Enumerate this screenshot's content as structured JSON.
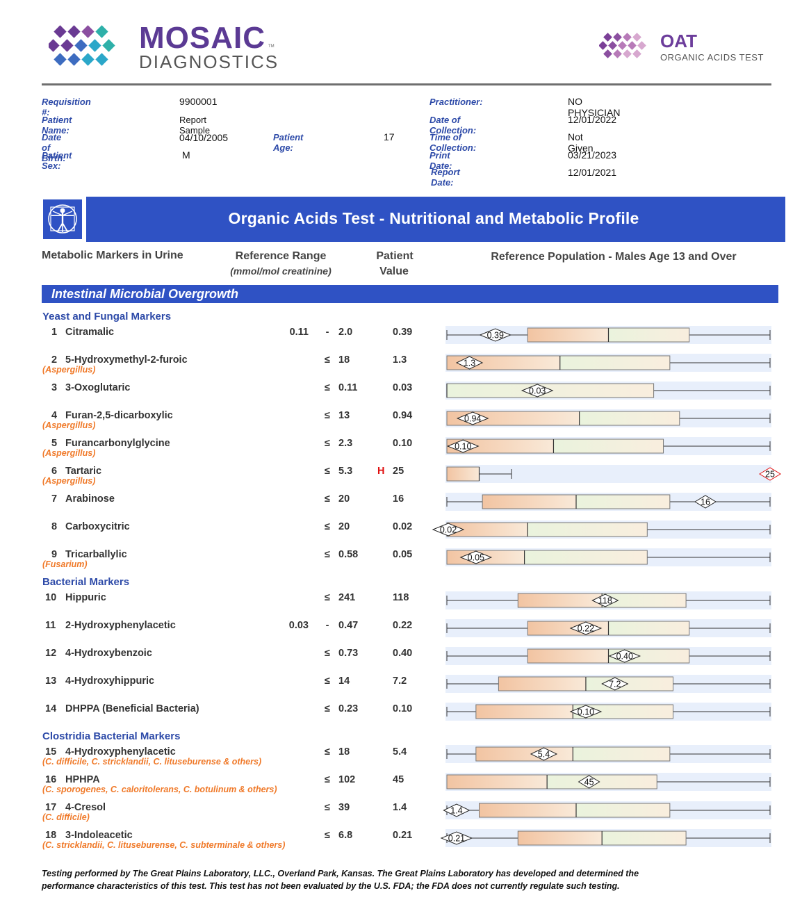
{
  "header": {
    "logo_line1": "MOSAIC",
    "logo_tm": "TM",
    "logo_line2": "DIAGNOSTICS",
    "oat_title": "OAT",
    "oat_subtitle": "ORGANIC ACIDS TEST"
  },
  "patient": {
    "left": [
      {
        "label": "Requisition #:",
        "value": "9900001"
      },
      {
        "label": "Patient Name:",
        "value": "Report Sample"
      },
      {
        "label": "Date of Birth:",
        "value": "04/10/2005"
      },
      {
        "label": "Patient Sex:",
        "value": "M"
      }
    ],
    "age_label": "Patient Age:",
    "age_value": "17",
    "right": [
      {
        "label": "Practitioner:",
        "value": "NO PHYSICIAN"
      },
      {
        "label": "Date of Collection:",
        "value": "12/01/2022"
      },
      {
        "label": "Time of Collection:",
        "value": "Not Given"
      },
      {
        "label": "Print Date:",
        "value": "03/21/2023"
      },
      {
        "label": "Report Date:",
        "value": "12/01/2021"
      }
    ]
  },
  "banner": {
    "icon": "vitruvian-man-icon",
    "title": "Organic Acids Test - Nutritional and Metabolic Profile"
  },
  "columns": {
    "markers": "Metabolic Markers in Urine",
    "range": "Reference Range",
    "range_units": "(mmol/mol creatinine)",
    "patient_line1": "Patient",
    "patient_line2": "Value",
    "population": "Reference Population - Males Age 13 and Over"
  },
  "section_title": "Intestinal Microbial Overgrowth",
  "groups": [
    {
      "title": "Yeast and Fungal Markers"
    },
    {
      "title": "Bacterial Markers"
    },
    {
      "title": "Clostridia Bacterial Markers"
    }
  ],
  "markers": [
    {
      "num": "1",
      "name": "Citramalic",
      "sub": "",
      "low": "0.11",
      "sep": "-",
      "high": "2.0",
      "flag": "",
      "value": "0.39"
    },
    {
      "num": "2",
      "name": "5-Hydroxymethyl-2-furoic",
      "sub": "(Aspergillus)",
      "low": "",
      "sep": "≤",
      "high": "18",
      "flag": "",
      "value": "1.3"
    },
    {
      "num": "3",
      "name": "3-Oxoglutaric",
      "sub": "",
      "low": "",
      "sep": "≤",
      "high": "0.11",
      "flag": "",
      "value": "0.03"
    },
    {
      "num": "4",
      "name": "Furan-2,5-dicarboxylic",
      "sub": "(Aspergillus)",
      "low": "",
      "sep": "≤",
      "high": "13",
      "flag": "",
      "value": "0.94"
    },
    {
      "num": "5",
      "name": "Furancarbonylglycine",
      "sub": "(Aspergillus)",
      "low": "",
      "sep": "≤",
      "high": "2.3",
      "flag": "",
      "value": "0.10"
    },
    {
      "num": "6",
      "name": "Tartaric",
      "sub": "(Aspergillus)",
      "low": "",
      "sep": "≤",
      "high": "5.3",
      "flag": "H",
      "value": "25"
    },
    {
      "num": "7",
      "name": "Arabinose",
      "sub": "",
      "low": "",
      "sep": "≤",
      "high": "20",
      "flag": "",
      "value": "16"
    },
    {
      "num": "8",
      "name": "Carboxycitric",
      "sub": "",
      "low": "",
      "sep": "≤",
      "high": "20",
      "flag": "",
      "value": "0.02"
    },
    {
      "num": "9",
      "name": "Tricarballylic",
      "sub": "(Fusarium)",
      "low": "",
      "sep": "≤",
      "high": "0.58",
      "flag": "",
      "value": "0.05"
    },
    {
      "num": "10",
      "name": "Hippuric",
      "sub": "",
      "low": "",
      "sep": "≤",
      "high": "241",
      "flag": "",
      "value": "118"
    },
    {
      "num": "11",
      "name": "2-Hydroxyphenylacetic",
      "sub": "",
      "low": "0.03",
      "sep": "-",
      "high": "0.47",
      "flag": "",
      "value": "0.22"
    },
    {
      "num": "12",
      "name": "4-Hydroxybenzoic",
      "sub": "",
      "low": "",
      "sep": "≤",
      "high": "0.73",
      "flag": "",
      "value": "0.40"
    },
    {
      "num": "13",
      "name": "4-Hydroxyhippuric",
      "sub": "",
      "low": "",
      "sep": "≤",
      "high": "14",
      "flag": "",
      "value": "7.2"
    },
    {
      "num": "14",
      "name": "DHPPA (Beneficial Bacteria)",
      "sub": "",
      "low": "",
      "sep": "≤",
      "high": "0.23",
      "flag": "",
      "value": "0.10"
    },
    {
      "num": "15",
      "name": "4-Hydroxyphenylacetic",
      "sub": "(C. difficile, C. stricklandii, C. lituseburense & others)",
      "low": "",
      "sep": "≤",
      "high": "18",
      "flag": "",
      "value": "5.4"
    },
    {
      "num": "16",
      "name": "HPHPA",
      "sub": "(C. sporogenes, C. caloritolerans, C. botulinum & others)",
      "low": "",
      "sep": "≤",
      "high": "102",
      "flag": "",
      "value": "45"
    },
    {
      "num": "17",
      "name": "4-Cresol",
      "sub": "(C. difficile)",
      "low": "",
      "sep": "≤",
      "high": "39",
      "flag": "",
      "value": "1.4"
    },
    {
      "num": "18",
      "name": "3-Indoleacetic",
      "sub": "(C. stricklandii, C. lituseburense, C. subterminale & others)",
      "low": "",
      "sep": "≤",
      "high": "6.8",
      "flag": "",
      "value": "0.21"
    }
  ],
  "chart_data": {
    "type": "box",
    "title": "Reference Population - Males Age 13 and Over",
    "note": "Box plots per marker on the 0-1 scale of the population panel; patient value shown as a diamond marker",
    "series": [
      {
        "marker": "Citramalic",
        "min": 0,
        "q1": 0.25,
        "median": 0.5,
        "q3": 0.75,
        "max": 1.0,
        "patient": 0.15,
        "patient_label": "0.39",
        "high": false
      },
      {
        "marker": "5-Hydroxymethyl-2-furoic",
        "min": 0,
        "q1": 0.0,
        "median": 0.35,
        "q3": 0.69,
        "max": 1.0,
        "patient": 0.07,
        "patient_label": "1.3",
        "high": false
      },
      {
        "marker": "3-Oxoglutaric",
        "min": 0,
        "q1": 0.0,
        "median": 0.0,
        "q3": 0.64,
        "max": 1.0,
        "patient": 0.28,
        "patient_label": "0.03",
        "high": false
      },
      {
        "marker": "Furan-2,5-dicarboxylic",
        "min": 0,
        "q1": 0.0,
        "median": 0.41,
        "q3": 0.72,
        "max": 1.0,
        "patient": 0.08,
        "patient_label": "0.94",
        "high": false
      },
      {
        "marker": "Furancarbonylglycine",
        "min": 0,
        "q1": 0.0,
        "median": 0.33,
        "q3": 0.67,
        "max": 1.0,
        "patient": 0.05,
        "patient_label": "0.10",
        "high": false
      },
      {
        "marker": "Tartaric",
        "min": 0,
        "q1": 0.0,
        "median": 0.1,
        "q3": 0.1,
        "max": 0.2,
        "patient": 1.0,
        "patient_label": "25",
        "high": true
      },
      {
        "marker": "Arabinose",
        "min": 0,
        "q1": 0.11,
        "median": 0.4,
        "q3": 0.69,
        "max": 1.0,
        "patient": 0.8,
        "patient_label": "16",
        "high": false
      },
      {
        "marker": "Carboxycitric",
        "min": 0,
        "q1": 0.0,
        "median": 0.25,
        "q3": 0.62,
        "max": 1.0,
        "patient": 0.0,
        "patient_label": "0.02",
        "high": false
      },
      {
        "marker": "Tricarballylic",
        "min": 0,
        "q1": 0.0,
        "median": 0.24,
        "q3": 0.62,
        "max": 1.0,
        "patient": 0.09,
        "patient_label": "0.05",
        "high": false
      },
      {
        "marker": "Hippuric",
        "min": 0,
        "q1": 0.22,
        "median": 0.48,
        "q3": 0.74,
        "max": 1.0,
        "patient": 0.49,
        "patient_label": "118",
        "high": false
      },
      {
        "marker": "2-Hydroxyphenylacetic",
        "min": 0,
        "q1": 0.25,
        "median": 0.5,
        "q3": 0.75,
        "max": 1.0,
        "patient": 0.43,
        "patient_label": "0.22",
        "high": false
      },
      {
        "marker": "4-Hydroxybenzoic",
        "min": 0,
        "q1": 0.25,
        "median": 0.5,
        "q3": 0.75,
        "max": 1.0,
        "patient": 0.55,
        "patient_label": "0.40",
        "high": false
      },
      {
        "marker": "4-Hydroxyhippuric",
        "min": 0,
        "q1": 0.16,
        "median": 0.43,
        "q3": 0.7,
        "max": 1.0,
        "patient": 0.52,
        "patient_label": "7.2",
        "high": false
      },
      {
        "marker": "DHPPA (Beneficial Bacteria)",
        "min": 0,
        "q1": 0.09,
        "median": 0.39,
        "q3": 0.7,
        "max": 1.0,
        "patient": 0.43,
        "patient_label": "0.10",
        "high": false
      },
      {
        "marker": "4-Hydroxyphenylacetic",
        "min": 0,
        "q1": 0.09,
        "median": 0.39,
        "q3": 0.69,
        "max": 1.0,
        "patient": 0.3,
        "patient_label": "5.4",
        "high": false
      },
      {
        "marker": "HPHPA",
        "min": 0,
        "q1": 0.0,
        "median": 0.31,
        "q3": 0.65,
        "max": 1.0,
        "patient": 0.44,
        "patient_label": "45",
        "high": false
      },
      {
        "marker": "4-Cresol",
        "min": 0,
        "q1": 0.1,
        "median": 0.4,
        "q3": 0.69,
        "max": 1.0,
        "patient": 0.03,
        "patient_label": "1.4",
        "high": false
      },
      {
        "marker": "3-Indoleacetic",
        "min": 0,
        "q1": 0.22,
        "median": 0.48,
        "q3": 0.74,
        "max": 1.0,
        "patient": 0.03,
        "patient_label": "0.21",
        "high": false
      }
    ]
  },
  "footer": "Testing performed by The Great Plains Laboratory, LLC., Overland Park, Kansas. The Great Plains Laboratory has developed and determined the performance characteristics of this test. This test has not been evaluated by the U.S. FDA; the FDA does not currently regulate such testing.",
  "colors": {
    "brand_blue": "#2f52c4",
    "label_blue": "#2d4aa8",
    "orange": "#f07a2a",
    "high_red": "#e01010",
    "logo_purple": "#5b3a94"
  }
}
